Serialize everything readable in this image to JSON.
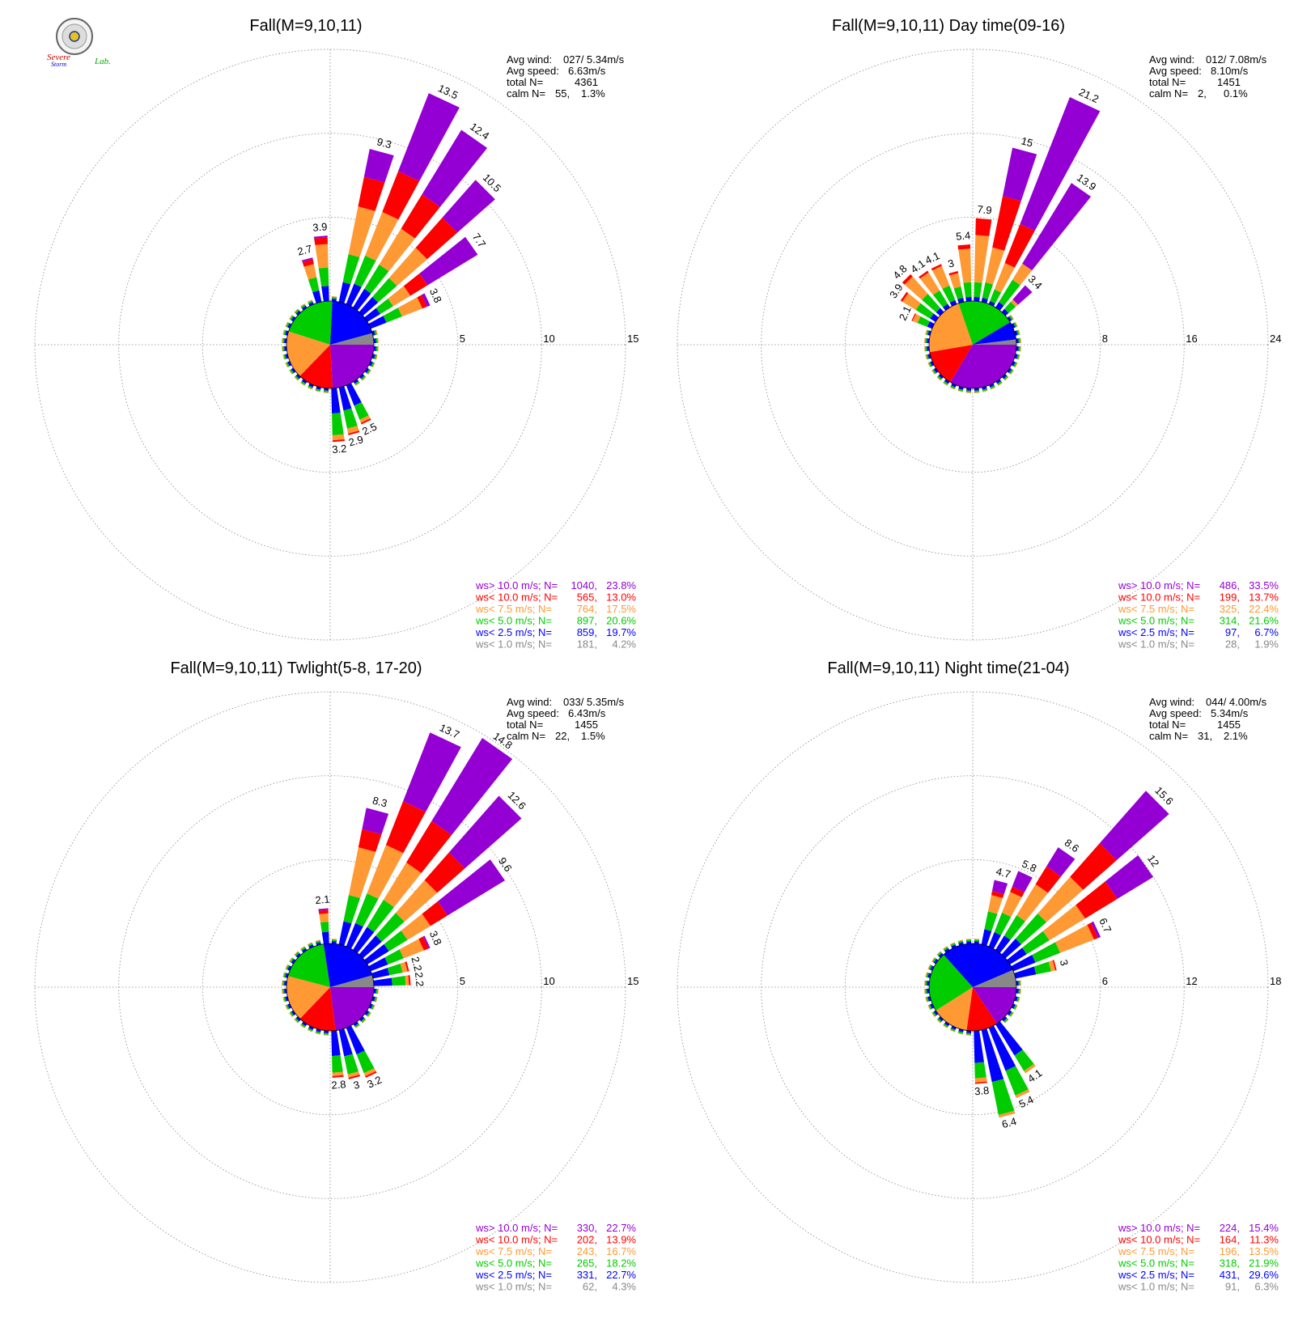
{
  "logo": {
    "top_text": "Severe",
    "bottom_text": "Storm",
    "lab_text": "Lab."
  },
  "colors": {
    "gt10": "#9400D3",
    "lt10": "#FF0000",
    "lt7_5": "#FF9933",
    "lt5": "#00CC00",
    "lt2_5": "#0000FF",
    "lt1": "#888888",
    "grid": "#888888",
    "text": "#000000"
  },
  "legend_classes": [
    "ws> 10.0 m/s; N=",
    "ws< 10.0 m/s; N=",
    "ws<  7.5 m/s; N=",
    "ws<  5.0 m/s; N=",
    "ws<  2.5 m/s; N=",
    "ws<  1.0 m/s; N="
  ],
  "stats_labels": {
    "avg_wind": "Avg wind:",
    "avg_speed": "Avg speed:",
    "total": "total N=",
    "calm": "calm N="
  },
  "chart_data": [
    {
      "type": "windrose",
      "title": "Fall(M=9,10,11)",
      "rlim": [
        0,
        15
      ],
      "rings": [
        "5",
        "10",
        "15"
      ],
      "stats": {
        "avg_wind": "027/ 5.34m/s",
        "avg_speed": "6.63m/s",
        "total_n": "4361",
        "calm_n": "55,",
        "calm_pct": "1.3%"
      },
      "legend": [
        {
          "n": "1040,",
          "pct": "23.8%"
        },
        {
          "n": "565,",
          "pct": "13.0%"
        },
        {
          "n": "764,",
          "pct": "17.5%"
        },
        {
          "n": "897,",
          "pct": "20.6%"
        },
        {
          "n": "859,",
          "pct": "19.7%"
        },
        {
          "n": "181,",
          "pct": "4.2%"
        }
      ],
      "pie": [
        23.8,
        13.0,
        17.5,
        20.6,
        19.7,
        4.2
      ],
      "bars": [
        {
          "dir": 345,
          "total": 2.7,
          "comp": [
            0.1,
            0.3,
            0.8,
            0.8,
            0.7
          ]
        },
        {
          "dir": 355,
          "total": 3.9,
          "comp": [
            0.1,
            0.4,
            1.4,
            1.1,
            0.9
          ]
        },
        {
          "dir": 15,
          "total": 9.3,
          "comp": [
            1.7,
            1.8,
            2.9,
            1.7,
            1.2
          ]
        },
        {
          "dir": 25,
          "total": 13.5,
          "comp": [
            5.0,
            2.6,
            2.8,
            1.8,
            1.3
          ]
        },
        {
          "dir": 35,
          "total": 12.4,
          "comp": [
            4.5,
            2.4,
            2.5,
            1.7,
            1.3
          ]
        },
        {
          "dir": 45,
          "total": 10.5,
          "comp": [
            3.0,
            2.4,
            2.4,
            1.5,
            1.2
          ]
        },
        {
          "dir": 55,
          "total": 7.7,
          "comp": [
            3.5,
            1.2,
            1.2,
            0.9,
            0.9
          ]
        },
        {
          "dir": 65,
          "total": 3.8,
          "comp": [
            0.2,
            0.3,
            1.3,
            1.0,
            1.0
          ]
        },
        {
          "dir": 155,
          "total": 2.5,
          "comp": [
            0.0,
            0.1,
            0.2,
            0.9,
            1.3
          ]
        },
        {
          "dir": 165,
          "total": 2.9,
          "comp": [
            0.0,
            0.1,
            0.3,
            1.1,
            1.4
          ]
        },
        {
          "dir": 175,
          "total": 3.2,
          "comp": [
            0.0,
            0.1,
            0.3,
            1.3,
            1.5
          ]
        }
      ]
    },
    {
      "type": "windrose",
      "title": "Fall(M=9,10,11) Day time(09-16)",
      "rlim": [
        0,
        24
      ],
      "rings": [
        "8",
        "16",
        "24"
      ],
      "stats": {
        "avg_wind": "012/ 7.08m/s",
        "avg_speed": "8.10m/s",
        "total_n": "1451",
        "calm_n": "2,",
        "calm_pct": "0.1%"
      },
      "legend": [
        {
          "n": "486,",
          "pct": "33.5%"
        },
        {
          "n": "199,",
          "pct": "13.7%"
        },
        {
          "n": "325,",
          "pct": "22.4%"
        },
        {
          "n": "314,",
          "pct": "21.6%"
        },
        {
          "n": "97,",
          "pct": "6.7%"
        },
        {
          "n": "28,",
          "pct": "1.9%"
        }
      ],
      "pie": [
        33.5,
        13.7,
        22.4,
        21.6,
        6.7,
        1.9
      ],
      "bars": [
        {
          "dir": 295,
          "total": 2.1,
          "comp": [
            0.0,
            0.1,
            0.5,
            1.0,
            0.5
          ]
        },
        {
          "dir": 305,
          "total": 3.9,
          "comp": [
            0.0,
            0.2,
            1.5,
            1.6,
            0.6
          ]
        },
        {
          "dir": 315,
          "total": 4.8,
          "comp": [
            0.0,
            0.3,
            2.2,
            1.8,
            0.5
          ]
        },
        {
          "dir": 325,
          "total": 4.1,
          "comp": [
            0.0,
            0.2,
            2.0,
            1.5,
            0.4
          ]
        },
        {
          "dir": 335,
          "total": 4.1,
          "comp": [
            0.0,
            0.2,
            2.0,
            1.5,
            0.4
          ]
        },
        {
          "dir": 345,
          "total": 3.0,
          "comp": [
            0.0,
            0.2,
            1.3,
            1.1,
            0.4
          ]
        },
        {
          "dir": 355,
          "total": 5.4,
          "comp": [
            0.0,
            0.4,
            3.2,
            1.4,
            0.4
          ]
        },
        {
          "dir": 5,
          "total": 7.9,
          "comp": [
            0.0,
            1.6,
            4.5,
            1.4,
            0.4
          ]
        },
        {
          "dir": 15,
          "total": 15.0,
          "comp": [
            4.7,
            5.0,
            3.4,
            1.5,
            0.4
          ]
        },
        {
          "dir": 25,
          "total": 21.2,
          "comp": [
            13.0,
            4.0,
            2.7,
            1.2,
            0.3
          ]
        },
        {
          "dir": 35,
          "total": 13.9,
          "comp": [
            9.0,
            0.0,
            1.8,
            2.5,
            0.6
          ]
        },
        {
          "dir": 45,
          "total": 3.4,
          "comp": [
            1.8,
            0.0,
            0.3,
            0.9,
            0.4
          ]
        }
      ]
    },
    {
      "type": "windrose",
      "title": "Fall(M=9,10,11) Twlight(5-8, 17-20)",
      "rlim": [
        0,
        15
      ],
      "rings": [
        "5",
        "10",
        "15"
      ],
      "stats": {
        "avg_wind": "033/ 5.35m/s",
        "avg_speed": "6.43m/s",
        "total_n": "1455",
        "calm_n": "22,",
        "calm_pct": "1.5%"
      },
      "legend": [
        {
          "n": "330,",
          "pct": "22.7%"
        },
        {
          "n": "202,",
          "pct": "13.9%"
        },
        {
          "n": "243,",
          "pct": "16.7%"
        },
        {
          "n": "265,",
          "pct": "18.2%"
        },
        {
          "n": "331,",
          "pct": "22.7%"
        },
        {
          "n": "62,",
          "pct": "4.3%"
        }
      ],
      "pie": [
        22.7,
        13.9,
        16.7,
        18.2,
        22.7,
        4.3
      ],
      "bars": [
        {
          "dir": 355,
          "total": 2.1,
          "comp": [
            0.1,
            0.2,
            0.5,
            0.6,
            0.7
          ]
        },
        {
          "dir": 15,
          "total": 8.3,
          "comp": [
            1.3,
            1.1,
            2.9,
            1.6,
            1.4
          ]
        },
        {
          "dir": 25,
          "total": 13.7,
          "comp": [
            4.4,
            2.8,
            3.1,
            1.9,
            1.5
          ]
        },
        {
          "dir": 35,
          "total": 14.8,
          "comp": [
            5.8,
            2.9,
            2.6,
            1.9,
            1.6
          ]
        },
        {
          "dir": 45,
          "total": 12.6,
          "comp": [
            4.5,
            2.2,
            2.6,
            1.8,
            1.5
          ]
        },
        {
          "dir": 55,
          "total": 9.6,
          "comp": [
            4.0,
            1.2,
            1.6,
            1.3,
            1.5
          ]
        },
        {
          "dir": 65,
          "total": 3.8,
          "comp": [
            0.1,
            0.3,
            1.3,
            1.0,
            1.1
          ]
        },
        {
          "dir": 75,
          "total": 2.2,
          "comp": [
            0.0,
            0.1,
            0.3,
            0.8,
            1.0
          ]
        },
        {
          "dir": 85,
          "total": 2.2,
          "comp": [
            0.0,
            0.1,
            0.2,
            0.8,
            1.1
          ]
        },
        {
          "dir": 155,
          "total": 3.2,
          "comp": [
            0.0,
            0.1,
            0.2,
            1.2,
            1.7
          ]
        },
        {
          "dir": 165,
          "total": 3.0,
          "comp": [
            0.0,
            0.1,
            0.2,
            1.1,
            1.6
          ]
        },
        {
          "dir": 175,
          "total": 2.8,
          "comp": [
            0.0,
            0.1,
            0.2,
            1.0,
            1.5
          ]
        }
      ]
    },
    {
      "type": "windrose",
      "title": "Fall(M=9,10,11) Night time(21-04)",
      "rlim": [
        0,
        18
      ],
      "rings": [
        "6",
        "12",
        "18"
      ],
      "stats": {
        "avg_wind": "044/ 4.00m/s",
        "avg_speed": "5.34m/s",
        "total_n": "1455",
        "calm_n": "31,",
        "calm_pct": "2.1%"
      },
      "legend": [
        {
          "n": "224,",
          "pct": "15.4%"
        },
        {
          "n": "164,",
          "pct": "11.3%"
        },
        {
          "n": "196,",
          "pct": "13.5%"
        },
        {
          "n": "318,",
          "pct": "21.9%"
        },
        {
          "n": "431,",
          "pct": "29.6%"
        },
        {
          "n": "91,",
          "pct": "6.3%"
        }
      ],
      "pie": [
        15.4,
        11.3,
        13.5,
        21.9,
        29.6,
        6.3
      ],
      "bars": [
        {
          "dir": 15,
          "total": 4.7,
          "comp": [
            0.8,
            0.3,
            1.2,
            1.3,
            1.1
          ]
        },
        {
          "dir": 25,
          "total": 5.8,
          "comp": [
            1.2,
            0.4,
            1.6,
            1.5,
            1.1
          ]
        },
        {
          "dir": 35,
          "total": 8.6,
          "comp": [
            1.6,
            1.5,
            2.6,
            1.7,
            1.2
          ]
        },
        {
          "dir": 45,
          "total": 15.6,
          "comp": [
            5.0,
            3.2,
            3.5,
            2.4,
            1.5
          ]
        },
        {
          "dir": 55,
          "total": 12.0,
          "comp": [
            3.0,
            2.7,
            3.0,
            1.9,
            1.4
          ]
        },
        {
          "dir": 65,
          "total": 6.7,
          "comp": [
            0.2,
            0.3,
            2.6,
            1.9,
            1.7
          ]
        },
        {
          "dir": 75,
          "total": 3.0,
          "comp": [
            0.0,
            0.1,
            0.3,
            1.1,
            1.5
          ]
        },
        {
          "dir": 145,
          "total": 4.1,
          "comp": [
            0.0,
            0.0,
            0.2,
            1.3,
            2.6
          ]
        },
        {
          "dir": 155,
          "total": 5.4,
          "comp": [
            0.0,
            0.0,
            0.2,
            1.9,
            3.3
          ]
        },
        {
          "dir": 165,
          "total": 6.4,
          "comp": [
            0.0,
            0.0,
            0.2,
            2.4,
            3.8
          ]
        },
        {
          "dir": 175,
          "total": 3.8,
          "comp": [
            0.0,
            0.1,
            0.3,
            1.1,
            2.3
          ]
        }
      ]
    }
  ]
}
